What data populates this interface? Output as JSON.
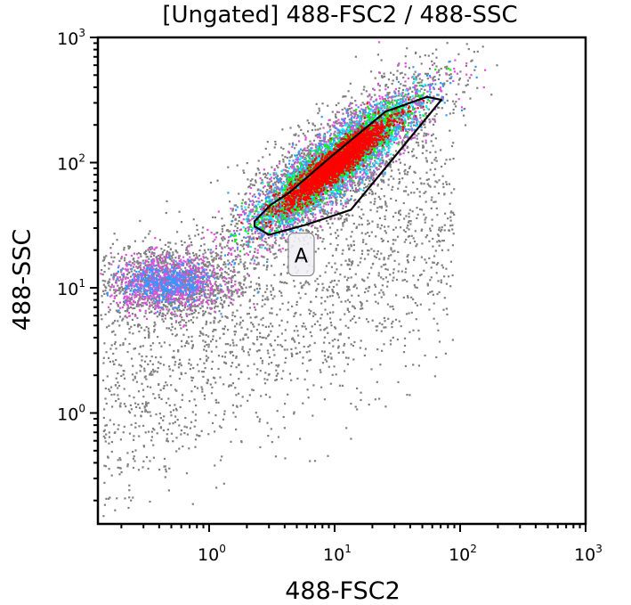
{
  "chart_data": {
    "type": "scatter",
    "title": "[Ungated] 488-FSC2 / 488-SSC",
    "xlabel": "488-FSC2",
    "ylabel": "488-SSC",
    "xscale": "log",
    "yscale": "log",
    "xlim": [
      0.13,
      1000
    ],
    "ylim": [
      0.13,
      1000
    ],
    "x_ticks": [
      {
        "value": 1,
        "base": "10",
        "exp": "0"
      },
      {
        "value": 10,
        "base": "10",
        "exp": "1"
      },
      {
        "value": 100,
        "base": "10",
        "exp": "2"
      },
      {
        "value": 1000,
        "base": "10",
        "exp": "3"
      }
    ],
    "y_ticks": [
      {
        "value": 1,
        "base": "10",
        "exp": "0"
      },
      {
        "value": 10,
        "base": "10",
        "exp": "1"
      },
      {
        "value": 100,
        "base": "10",
        "exp": "2"
      },
      {
        "value": 1000,
        "base": "10",
        "exp": "3"
      }
    ],
    "grid": false,
    "density_colors": [
      "#808080",
      "#e050e0",
      "#3399ff",
      "#00ffff",
      "#00ff00",
      "#ff0000"
    ],
    "populations": [
      {
        "description": "main elongated population",
        "x_range": [
          2.2,
          80
        ],
        "y_range": [
          22,
          380
        ],
        "center": [
          10,
          100
        ]
      },
      {
        "description": "low-scatter debris cluster",
        "x_range": [
          0.15,
          2
        ],
        "y_range": [
          7,
          20
        ],
        "center": [
          0.45,
          11
        ]
      }
    ],
    "gates": [
      {
        "name": "A",
        "polygon": [
          [
            2.3,
            34
          ],
          [
            3.1,
            46
          ],
          [
            4.4,
            58
          ],
          [
            9.2,
            110
          ],
          [
            25.5,
            256
          ],
          [
            54.5,
            335
          ],
          [
            70.9,
            317
          ],
          [
            33.9,
            129
          ],
          [
            13.5,
            42
          ],
          [
            6.0,
            32
          ],
          [
            3.0,
            26.5
          ],
          [
            2.3,
            31
          ]
        ]
      }
    ]
  }
}
